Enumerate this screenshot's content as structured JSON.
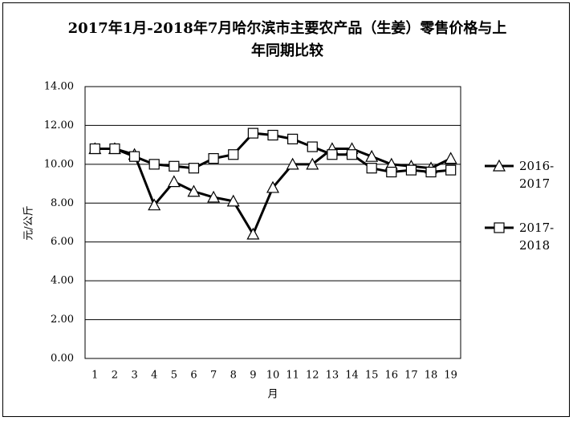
{
  "chart_data": {
    "type": "line",
    "title": "2017年1月-2018年7月哈尔滨市主要农产品（生姜）零售价格与上年同期比较",
    "x_label": "月",
    "y_label": "元/公斤",
    "categories": [
      "1",
      "2",
      "3",
      "4",
      "5",
      "6",
      "7",
      "8",
      "9",
      "10",
      "11",
      "12",
      "13",
      "14",
      "15",
      "16",
      "17",
      "18",
      "19"
    ],
    "series": [
      {
        "name": "2016-2017",
        "color": "#000000",
        "marker": "triangle",
        "values": [
          10.8,
          10.8,
          10.5,
          7.9,
          9.1,
          8.6,
          8.3,
          8.1,
          6.4,
          8.8,
          10.0,
          10.0,
          10.8,
          10.8,
          10.4,
          10.0,
          9.9,
          9.8,
          10.3
        ]
      },
      {
        "name": "2017-2018",
        "color": "#000000",
        "marker": "square",
        "values": [
          10.8,
          10.8,
          10.4,
          10.0,
          9.9,
          9.8,
          10.3,
          10.5,
          11.6,
          11.5,
          11.3,
          10.9,
          10.5,
          10.5,
          9.8,
          9.6,
          9.7,
          9.6,
          9.7
        ]
      }
    ],
    "ylim": [
      0,
      14
    ],
    "yticks": [
      {
        "value": 0,
        "label": "0.00"
      },
      {
        "value": 2,
        "label": "2.00"
      },
      {
        "value": 4,
        "label": "4.00"
      },
      {
        "value": 6,
        "label": "6.00"
      },
      {
        "value": 8,
        "label": "8.00"
      },
      {
        "value": 10,
        "label": "10.00"
      },
      {
        "value": 12,
        "label": "12.00"
      },
      {
        "value": 14,
        "label": "14.00"
      }
    ],
    "grid": true,
    "legend": "right"
  }
}
